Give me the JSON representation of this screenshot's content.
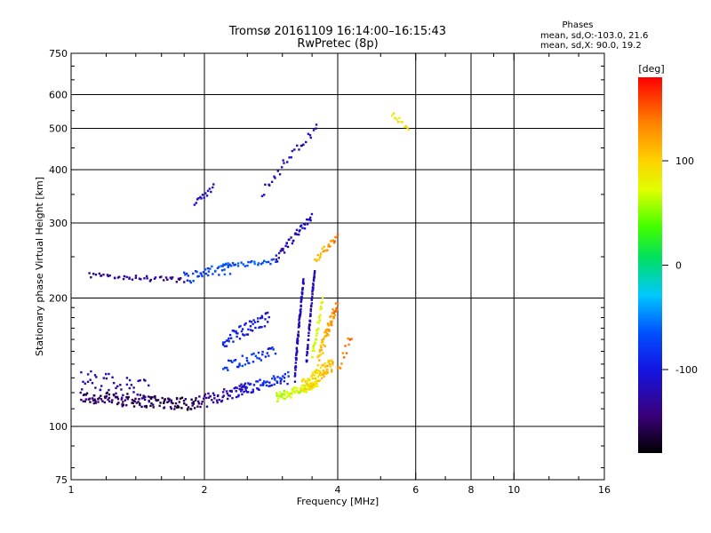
{
  "chart_data": {
    "type": "scatter",
    "title": "Tromsø 20161109 16:14:00–16:15:43",
    "subtitle": "RwPretec (8p)",
    "annotation_title": "Phases",
    "annotation_lines": [
      "mean, sd,O:-103.0, 21.6",
      "mean, sd,X:  90.0, 19.2"
    ],
    "xlabel": "Frequency [MHz]",
    "ylabel": "Stationary phase Virtual Height [km]",
    "x_scale": "log",
    "y_scale": "log",
    "xlim": [
      1,
      16
    ],
    "ylim": [
      75,
      750
    ],
    "x_ticks": [
      1,
      2,
      4,
      6,
      8,
      10,
      16
    ],
    "x_tick_labels": [
      "1",
      "2",
      "4",
      "6",
      "8",
      "10",
      "16"
    ],
    "y_ticks": [
      75,
      100,
      200,
      300,
      400,
      500,
      600,
      750
    ],
    "y_tick_labels": [
      "75",
      "100",
      "200",
      "300",
      "400",
      "500",
      "600",
      "750"
    ],
    "x_grid": [
      2,
      4,
      6,
      8,
      10
    ],
    "y_grid": [
      100,
      200,
      300,
      400,
      500,
      600
    ],
    "colorbar": {
      "label": "[deg]",
      "range": [
        -180,
        180
      ],
      "ticks": [
        100,
        0,
        -100
      ],
      "tick_labels": [
        "100",
        "0",
        "-100"
      ],
      "colormap": "rainbow"
    },
    "series": [
      {
        "traces": [
          {
            "x0": 1.05,
            "x1": 1.9,
            "y0": 117,
            "y1": 113,
            "dev": 4,
            "p0": -150,
            "p1": -160,
            "n": 140
          },
          {
            "x0": 1.05,
            "x1": 1.5,
            "y0": 128,
            "y1": 122,
            "dev": 8,
            "p0": -120,
            "p1": -125,
            "n": 45
          },
          {
            "x0": 1.9,
            "x1": 2.5,
            "y0": 113,
            "y1": 123,
            "dev": 4,
            "p0": -150,
            "p1": -110,
            "n": 60
          },
          {
            "x0": 2.4,
            "x1": 3.1,
            "y0": 122,
            "y1": 130,
            "dev": 4,
            "p0": -105,
            "p1": -80,
            "n": 55
          },
          {
            "x0": 2.9,
            "x1": 3.6,
            "y0": 117,
            "y1": 125,
            "dev": 3,
            "p0": 60,
            "p1": 80,
            "n": 70
          },
          {
            "x0": 3.3,
            "x1": 3.9,
            "y0": 123,
            "y1": 140,
            "dev": 5,
            "p0": 90,
            "p1": 110,
            "n": 90
          },
          {
            "x0": 3.6,
            "x1": 4.0,
            "y0": 140,
            "y1": 195,
            "dev": 7,
            "p0": 100,
            "p1": 140,
            "n": 55
          },
          {
            "x0": 4.0,
            "x1": 4.3,
            "y0": 133,
            "y1": 165,
            "dev": 5,
            "p0": 140,
            "p1": 150,
            "n": 12
          },
          {
            "x0": 3.2,
            "x1": 3.35,
            "y0": 130,
            "y1": 220,
            "dev": 4,
            "p0": -115,
            "p1": -115,
            "n": 75
          },
          {
            "x0": 3.4,
            "x1": 3.55,
            "y0": 140,
            "y1": 230,
            "dev": 4,
            "p0": -120,
            "p1": -120,
            "n": 55
          },
          {
            "x0": 3.5,
            "x1": 3.7,
            "y0": 145,
            "y1": 195,
            "dev": 5,
            "p0": 70,
            "p1": 80,
            "n": 30
          },
          {
            "x0": 2.2,
            "x1": 2.8,
            "y0": 158,
            "y1": 180,
            "dev": 6,
            "p0": -90,
            "p1": -110,
            "n": 55
          },
          {
            "x0": 2.2,
            "x1": 2.9,
            "y0": 138,
            "y1": 150,
            "dev": 4,
            "p0": -75,
            "p1": -90,
            "n": 40
          },
          {
            "x0": 1.1,
            "x1": 1.8,
            "y0": 226,
            "y1": 220,
            "dev": 3,
            "p0": -135,
            "p1": -135,
            "n": 45
          },
          {
            "x0": 1.8,
            "x1": 2.3,
            "y0": 222,
            "y1": 235,
            "dev": 8,
            "p0": -80,
            "p1": -60,
            "n": 40
          },
          {
            "x0": 2.2,
            "x1": 2.9,
            "y0": 238,
            "y1": 244,
            "dev": 3,
            "p0": -75,
            "p1": -65,
            "n": 30
          },
          {
            "x0": 2.9,
            "x1": 3.5,
            "y0": 245,
            "y1": 310,
            "dev": 6,
            "p0": -120,
            "p1": -115,
            "n": 40
          },
          {
            "x0": 3.55,
            "x1": 4.0,
            "y0": 245,
            "y1": 280,
            "dev": 5,
            "p0": 110,
            "p1": 140,
            "n": 25
          },
          {
            "x0": 1.9,
            "x1": 2.1,
            "y0": 330,
            "y1": 365,
            "dev": 6,
            "p0": -115,
            "p1": -115,
            "n": 15
          },
          {
            "x0": 2.7,
            "x1": 3.6,
            "y0": 355,
            "y1": 500,
            "dev": 12,
            "p0": -118,
            "p1": -118,
            "n": 30
          },
          {
            "x0": 5.3,
            "x1": 5.8,
            "y0": 540,
            "y1": 500,
            "dev": 8,
            "p0": 90,
            "p1": 90,
            "n": 12
          }
        ]
      }
    ]
  }
}
